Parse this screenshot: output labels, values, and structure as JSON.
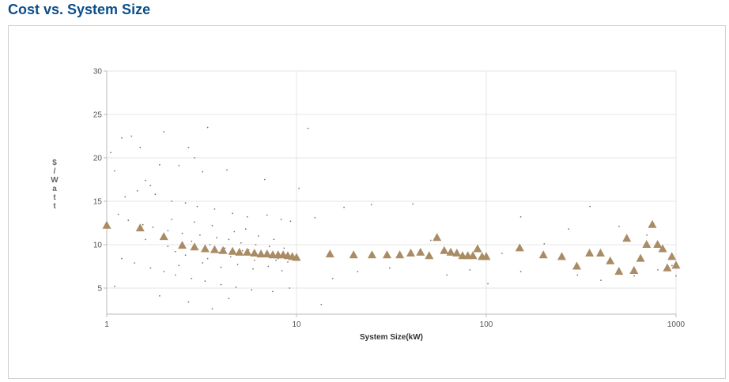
{
  "page": {
    "title": "Cost vs. System Size"
  },
  "colors": {
    "title": "#0b4f8a",
    "scatter_dot": "#777777",
    "triangle": "#a98b64",
    "grid": "#e4e4e4"
  },
  "chart_data": {
    "type": "scatter",
    "xlabel": "System Size(kW)",
    "ylabel": "$/Watt",
    "xscale": "log",
    "xlim": [
      1,
      1000
    ],
    "ylim": [
      2,
      30
    ],
    "xticks": [
      "1",
      "10",
      "100",
      "1000"
    ],
    "yticks": [
      "5",
      "10",
      "15",
      "20",
      "25",
      "30"
    ],
    "grid": true,
    "legend": "none",
    "series": [
      {
        "marker": "dot",
        "points": [
          [
            1.05,
            20.6
          ],
          [
            1.1,
            18.5
          ],
          [
            1.2,
            22.3
          ],
          [
            1.35,
            22.5
          ],
          [
            1.5,
            21.2
          ],
          [
            1.6,
            17.4
          ],
          [
            1.7,
            16.8
          ],
          [
            1.9,
            19.2
          ],
          [
            2.0,
            23.0
          ],
          [
            2.4,
            19.1
          ],
          [
            2.7,
            21.2
          ],
          [
            2.9,
            20.0
          ],
          [
            3.4,
            23.5
          ],
          [
            3.2,
            18.4
          ],
          [
            4.3,
            18.6
          ],
          [
            6.8,
            17.5
          ],
          [
            10.3,
            16.5
          ],
          [
            11.5,
            23.4
          ],
          [
            1.25,
            15.5
          ],
          [
            1.45,
            16.2
          ],
          [
            1.8,
            15.8
          ],
          [
            2.2,
            15.0
          ],
          [
            2.6,
            14.8
          ],
          [
            3.0,
            14.4
          ],
          [
            3.7,
            14.1
          ],
          [
            4.6,
            13.6
          ],
          [
            5.5,
            13.2
          ],
          [
            7.0,
            13.4
          ],
          [
            8.3,
            12.9
          ],
          [
            9.3,
            12.7
          ],
          [
            12.5,
            13.1
          ],
          [
            17.8,
            14.3
          ],
          [
            24.8,
            14.6
          ],
          [
            41.0,
            14.7
          ],
          [
            51.0,
            10.5
          ],
          [
            121.0,
            9.0
          ],
          [
            152.0,
            13.2
          ],
          [
            202.0,
            10.1
          ],
          [
            272.0,
            11.8
          ],
          [
            352.0,
            14.4
          ],
          [
            501.0,
            12.1
          ],
          [
            702.0,
            11.1
          ],
          [
            1.15,
            13.5
          ],
          [
            1.3,
            12.8
          ],
          [
            1.55,
            12.3
          ],
          [
            1.75,
            12.0
          ],
          [
            2.1,
            11.6
          ],
          [
            2.5,
            11.3
          ],
          [
            3.1,
            11.1
          ],
          [
            3.8,
            10.8
          ],
          [
            4.4,
            10.6
          ],
          [
            5.1,
            10.2
          ],
          [
            6.1,
            10.0
          ],
          [
            7.2,
            9.8
          ],
          [
            8.6,
            9.6
          ],
          [
            1.2,
            8.4
          ],
          [
            1.4,
            7.9
          ],
          [
            1.7,
            7.3
          ],
          [
            2.0,
            6.9
          ],
          [
            2.3,
            6.5
          ],
          [
            2.8,
            6.1
          ],
          [
            3.3,
            5.8
          ],
          [
            4.0,
            5.4
          ],
          [
            4.8,
            5.1
          ],
          [
            5.8,
            4.8
          ],
          [
            7.5,
            4.6
          ],
          [
            9.2,
            5.0
          ],
          [
            1.1,
            5.2
          ],
          [
            1.9,
            4.1
          ],
          [
            2.7,
            3.4
          ],
          [
            3.6,
            2.6
          ],
          [
            4.4,
            3.8
          ],
          [
            13.5,
            3.1
          ],
          [
            15.5,
            6.1
          ],
          [
            21.0,
            6.9
          ],
          [
            31.0,
            7.3
          ],
          [
            62.0,
            6.5
          ],
          [
            82.0,
            7.1
          ],
          [
            102.0,
            5.5
          ],
          [
            152.0,
            6.9
          ],
          [
            302.0,
            6.5
          ],
          [
            402.0,
            5.9
          ],
          [
            602.0,
            6.4
          ],
          [
            802.0,
            7.1
          ],
          [
            952.0,
            7.6
          ],
          [
            1000.0,
            6.4
          ],
          [
            2.3,
            9.2
          ],
          [
            2.6,
            8.8
          ],
          [
            3.0,
            9.5
          ],
          [
            3.4,
            8.4
          ],
          [
            3.9,
            9.1
          ],
          [
            4.5,
            8.6
          ],
          [
            5.2,
            9.3
          ],
          [
            6.0,
            8.2
          ],
          [
            6.9,
            8.9
          ],
          [
            8.0,
            8.4
          ],
          [
            9.0,
            8.0
          ],
          [
            1.6,
            10.6
          ],
          [
            2.1,
            9.8
          ],
          [
            2.8,
            10.4
          ],
          [
            3.5,
            10.0
          ],
          [
            4.2,
            9.6
          ],
          [
            5.6,
            9.4
          ],
          [
            6.5,
            8.6
          ],
          [
            7.8,
            8.2
          ],
          [
            2.4,
            7.6
          ],
          [
            3.2,
            7.9
          ],
          [
            4.0,
            7.4
          ],
          [
            4.9,
            7.7
          ],
          [
            5.9,
            7.2
          ],
          [
            7.1,
            7.5
          ],
          [
            8.4,
            7.0
          ],
          [
            3.6,
            12.2
          ],
          [
            4.7,
            11.5
          ],
          [
            5.4,
            11.8
          ],
          [
            6.3,
            11.0
          ],
          [
            7.6,
            10.6
          ],
          [
            2.2,
            12.9
          ],
          [
            2.9,
            12.6
          ]
        ]
      },
      {
        "marker": "triangle",
        "points": [
          [
            1.0,
            12.2
          ],
          [
            1.5,
            11.9
          ],
          [
            2.0,
            10.9
          ],
          [
            2.5,
            9.9
          ],
          [
            2.9,
            9.7
          ],
          [
            3.3,
            9.5
          ],
          [
            3.7,
            9.4
          ],
          [
            4.1,
            9.3
          ],
          [
            4.6,
            9.2
          ],
          [
            5.0,
            9.1
          ],
          [
            5.5,
            9.1
          ],
          [
            6.0,
            9.0
          ],
          [
            6.5,
            8.9
          ],
          [
            7.0,
            8.9
          ],
          [
            7.5,
            8.8
          ],
          [
            8.0,
            8.8
          ],
          [
            8.5,
            8.8
          ],
          [
            9.0,
            8.7
          ],
          [
            9.5,
            8.6
          ],
          [
            10.0,
            8.5
          ],
          [
            15.0,
            8.9
          ],
          [
            20.0,
            8.8
          ],
          [
            25.0,
            8.8
          ],
          [
            30.0,
            8.8
          ],
          [
            35.0,
            8.8
          ],
          [
            40.0,
            9.0
          ],
          [
            45.0,
            9.1
          ],
          [
            50.0,
            8.7
          ],
          [
            55.0,
            10.8
          ],
          [
            60.0,
            9.3
          ],
          [
            65.0,
            9.1
          ],
          [
            70.0,
            9.0
          ],
          [
            75.0,
            8.7
          ],
          [
            80.0,
            8.7
          ],
          [
            85.0,
            8.7
          ],
          [
            90.0,
            9.5
          ],
          [
            95.0,
            8.6
          ],
          [
            100.0,
            8.6
          ],
          [
            150.0,
            9.6
          ],
          [
            200.0,
            8.8
          ],
          [
            250.0,
            8.6
          ],
          [
            300.0,
            7.5
          ],
          [
            350.0,
            9.0
          ],
          [
            400.0,
            9.0
          ],
          [
            450.0,
            8.1
          ],
          [
            500.0,
            6.9
          ],
          [
            550.0,
            10.7
          ],
          [
            600.0,
            7.0
          ],
          [
            650.0,
            8.4
          ],
          [
            700.0,
            10.0
          ],
          [
            750.0,
            12.3
          ],
          [
            800.0,
            10.0
          ],
          [
            850.0,
            9.5
          ],
          [
            900.0,
            7.3
          ],
          [
            950.0,
            8.6
          ],
          [
            1000.0,
            7.6
          ]
        ]
      }
    ]
  }
}
